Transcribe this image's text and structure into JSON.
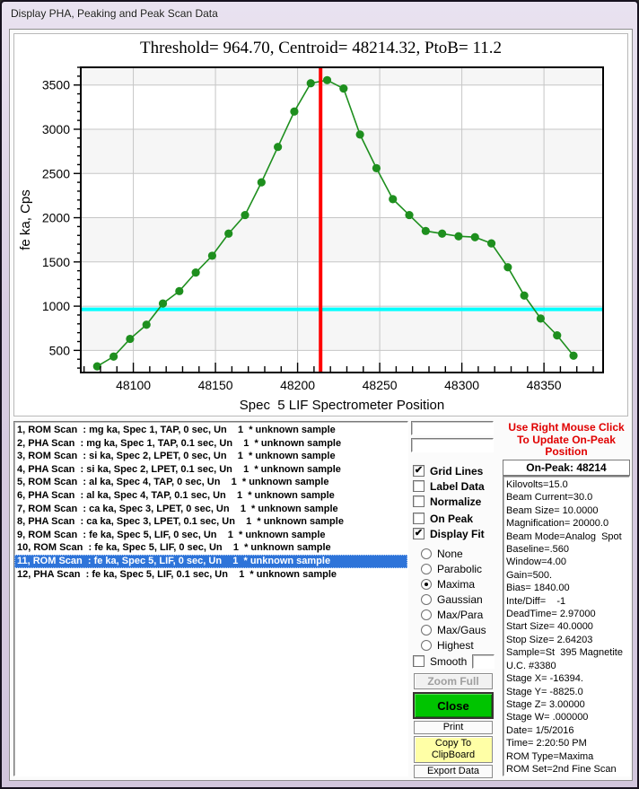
{
  "window": {
    "title": "Display PHA, Peaking and Peak Scan Data"
  },
  "chart": {
    "title": "Threshold= 964.70, Centroid= 48214.32, PtoB= 11.2"
  },
  "chart_data": {
    "type": "line",
    "title": "Threshold= 964.70, Centroid= 48214.32, PtoB= 11.2",
    "xlabel": "Spec  5 LIF Spectrometer Position",
    "ylabel": "fe ka, Cps",
    "xlim": [
      48068,
      48386
    ],
    "ylim": [
      250,
      3700
    ],
    "x": [
      48078,
      48088,
      48098,
      48108,
      48118,
      48128,
      48138,
      48148,
      48158,
      48168,
      48178,
      48188,
      48198,
      48208,
      48218,
      48228,
      48238,
      48248,
      48258,
      48268,
      48278,
      48288,
      48298,
      48308,
      48318,
      48328,
      48338,
      48348,
      48358,
      48368
    ],
    "y": [
      320,
      430,
      630,
      790,
      1030,
      1170,
      1380,
      1570,
      1820,
      2030,
      2400,
      2800,
      3200,
      3520,
      3555,
      3460,
      2940,
      2560,
      2210,
      2030,
      1850,
      1820,
      1790,
      1780,
      1710,
      1440,
      1120,
      860,
      670,
      440
    ],
    "x_major_ticks": [
      48100,
      48150,
      48200,
      48250,
      48300,
      48350
    ],
    "y_major_ticks": [
      500,
      1000,
      1500,
      2000,
      2500,
      3000,
      3500
    ],
    "x_minor_start": 48070,
    "x_minor_step": 10,
    "y_minor_start": 300,
    "y_minor_step": 100,
    "shaded_bands": [
      [
        500,
        1000
      ],
      [
        1500,
        2000
      ],
      [
        2500,
        3000
      ],
      [
        3500,
        3700
      ]
    ],
    "threshold_y": 964.7,
    "peak_x": 48214,
    "grid": true,
    "legend": "none",
    "colors": {
      "series": "#1e8f1e",
      "threshold": "#00ffff",
      "peak": "#ff0000",
      "band": "#f6f6f6",
      "gridline": "#c6c6c6"
    }
  },
  "scan_list": {
    "selected_index": 10,
    "items": [
      "1, ROM Scan  : mg ka, Spec 1, TAP, 0 sec, Un    1  * unknown sample",
      "2, PHA Scan  : mg ka, Spec 1, TAP, 0.1 sec, Un    1  * unknown sample",
      "3, ROM Scan  : si ka, Spec 2, LPET, 0 sec, Un    1  * unknown sample",
      "4, PHA Scan  : si ka, Spec 2, LPET, 0.1 sec, Un    1  * unknown sample",
      "5, ROM Scan  : al ka, Spec 4, TAP, 0 sec, Un    1  * unknown sample",
      "6, PHA Scan  : al ka, Spec 4, TAP, 0.1 sec, Un    1  * unknown sample",
      "7, ROM Scan  : ca ka, Spec 3, LPET, 0 sec, Un    1  * unknown sample",
      "8, PHA Scan  : ca ka, Spec 3, LPET, 0.1 sec, Un    1  * unknown sample",
      "9, ROM Scan  : fe ka, Spec 5, LIF, 0 sec, Un    1  * unknown sample",
      "10, ROM Scan  : fe ka, Spec 5, LIF, 0 sec, Un    1  * unknown sample",
      "11, ROM Scan  : fe ka, Spec 5, LIF, 0 sec, Un    1  * unknown sample",
      "12, PHA Scan  : fe ka, Spec 5, LIF, 0.1 sec, Un    1  * unknown sample"
    ]
  },
  "controls": {
    "field1": "",
    "field2": "",
    "checkbox_group1": [
      {
        "label": "Grid Lines",
        "checked": true
      },
      {
        "label": "Label Data",
        "checked": false
      },
      {
        "label": "Normalize",
        "checked": false
      }
    ],
    "checkbox_group2": [
      {
        "label": "On Peak",
        "checked": false
      },
      {
        "label": "Display Fit",
        "checked": true
      }
    ],
    "fit_options": [
      {
        "label": "None",
        "selected": false
      },
      {
        "label": "Parabolic",
        "selected": false
      },
      {
        "label": "Maxima",
        "selected": true
      },
      {
        "label": "Gaussian",
        "selected": false
      },
      {
        "label": "Max/Para",
        "selected": false
      },
      {
        "label": "Max/Gaus",
        "selected": false
      },
      {
        "label": "Highest",
        "selected": false
      }
    ],
    "smooth": {
      "label": "Smooth",
      "checked": false,
      "value": ""
    },
    "buttons": {
      "zoom_full": "Zoom Full",
      "close": "Close",
      "print": "Print",
      "copy_line1": "Copy To",
      "copy_line2": "ClipBoard",
      "export": "Export Data"
    }
  },
  "info_panel": {
    "warning_lines": [
      "Use Right Mouse Click",
      "To Update On-Peak",
      "Position"
    ],
    "on_peak_label": "On-Peak: 48214",
    "lines": [
      "Kilovolts=15.0",
      "Beam Current=30.0",
      "Beam Size= 10.0000",
      "Magnification= 20000.0",
      "Beam Mode=Analog  Spot",
      "Baseline=.560",
      "Window=4.00",
      "Gain=500.",
      "Bias= 1840.00",
      "Inte/Diff=    -1",
      "DeadTime= 2.97000",
      "Start Size= 40.0000",
      "Stop Size= 2.64203",
      "Sample=St  395 Magnetite",
      "U.C. #3380",
      "Stage X= -16394.",
      "Stage Y= -8825.0",
      "Stage Z= 3.00000",
      "Stage W= .000000",
      "Date= 1/5/2016",
      "Time= 2:20:50 PM",
      "ROM Type=Maxima",
      "ROM Set=2nd Fine Scan"
    ]
  }
}
